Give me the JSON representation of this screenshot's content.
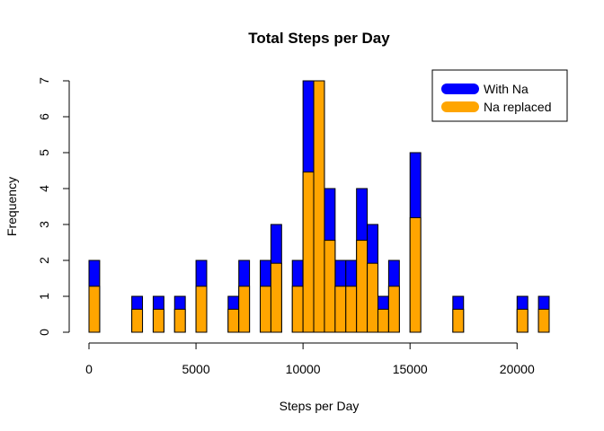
{
  "chart_data": {
    "type": "bar",
    "title": "Total Steps per Day",
    "xlabel": "Steps per Day",
    "ylabel": "Frequency",
    "xlim": [
      0,
      21500
    ],
    "ylim": [
      0,
      7
    ],
    "bin_width": 500,
    "x_ticks": [
      0,
      5000,
      10000,
      15000,
      20000
    ],
    "x_tick_labels": [
      "0",
      "5000",
      "10000",
      "15000",
      "20000"
    ],
    "y_ticks": [
      0,
      1,
      2,
      3,
      4,
      5,
      6,
      7
    ],
    "y_tick_labels": [
      "0",
      "1",
      "2",
      "3",
      "4",
      "5",
      "6",
      "7"
    ],
    "legend": {
      "placement": "top-right",
      "entries": [
        {
          "label": "With Na",
          "color": "#0000FF"
        },
        {
          "label": "Na replaced",
          "color": "#FFA500"
        }
      ]
    },
    "series": [
      {
        "name": "With Na",
        "color": "#0000FF",
        "bins": [
          {
            "x0": 0,
            "count": 2
          },
          {
            "x0": 2000,
            "count": 1
          },
          {
            "x0": 3000,
            "count": 1
          },
          {
            "x0": 4000,
            "count": 1
          },
          {
            "x0": 5000,
            "count": 2
          },
          {
            "x0": 6500,
            "count": 1
          },
          {
            "x0": 7000,
            "count": 2
          },
          {
            "x0": 8000,
            "count": 2
          },
          {
            "x0": 8500,
            "count": 3
          },
          {
            "x0": 9500,
            "count": 2
          },
          {
            "x0": 10000,
            "count": 7
          },
          {
            "x0": 10500,
            "count": 7
          },
          {
            "x0": 11000,
            "count": 4
          },
          {
            "x0": 11500,
            "count": 2
          },
          {
            "x0": 12000,
            "count": 2
          },
          {
            "x0": 12500,
            "count": 4
          },
          {
            "x0": 13000,
            "count": 3
          },
          {
            "x0": 13500,
            "count": 1
          },
          {
            "x0": 14000,
            "count": 2
          },
          {
            "x0": 15000,
            "count": 5
          },
          {
            "x0": 17000,
            "count": 1
          },
          {
            "x0": 20000,
            "count": 1
          },
          {
            "x0": 21000,
            "count": 1
          }
        ]
      },
      {
        "name": "Na replaced",
        "color": "#FFA500",
        "bins": [
          {
            "x0": 0,
            "count": 1.28
          },
          {
            "x0": 2000,
            "count": 0.64
          },
          {
            "x0": 3000,
            "count": 0.64
          },
          {
            "x0": 4000,
            "count": 0.64
          },
          {
            "x0": 5000,
            "count": 1.28
          },
          {
            "x0": 6500,
            "count": 0.64
          },
          {
            "x0": 7000,
            "count": 1.28
          },
          {
            "x0": 8000,
            "count": 1.28
          },
          {
            "x0": 8500,
            "count": 1.92
          },
          {
            "x0": 9500,
            "count": 1.28
          },
          {
            "x0": 10000,
            "count": 4.46
          },
          {
            "x0": 10500,
            "count": 7
          },
          {
            "x0": 11000,
            "count": 2.56
          },
          {
            "x0": 11500,
            "count": 1.28
          },
          {
            "x0": 12000,
            "count": 1.28
          },
          {
            "x0": 12500,
            "count": 2.56
          },
          {
            "x0": 13000,
            "count": 1.92
          },
          {
            "x0": 13500,
            "count": 0.64
          },
          {
            "x0": 14000,
            "count": 1.28
          },
          {
            "x0": 15000,
            "count": 3.19
          },
          {
            "x0": 17000,
            "count": 0.64
          },
          {
            "x0": 20000,
            "count": 0.64
          },
          {
            "x0": 21000,
            "count": 0.64
          }
        ]
      }
    ]
  }
}
